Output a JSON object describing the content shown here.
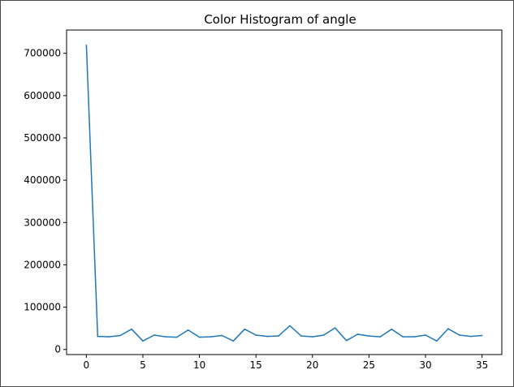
{
  "chart_data": {
    "type": "line",
    "title": "Color Histogram of angle",
    "xlabel": "",
    "ylabel": "",
    "xlim": [
      -1.75,
      36.75
    ],
    "ylim": [
      -12000,
      755000
    ],
    "xticks": [
      0,
      5,
      10,
      15,
      20,
      25,
      30,
      35
    ],
    "yticks": [
      0,
      100000,
      200000,
      300000,
      400000,
      500000,
      600000,
      700000
    ],
    "grid": false,
    "legend": "none",
    "series": [
      {
        "color": "#1f77b4",
        "x": [
          0,
          1,
          2,
          3,
          4,
          5,
          6,
          7,
          8,
          9,
          10,
          11,
          12,
          13,
          14,
          15,
          16,
          17,
          18,
          19,
          20,
          21,
          22,
          23,
          24,
          25,
          26,
          27,
          28,
          29,
          30,
          31,
          32,
          33,
          34,
          35
        ],
        "values": [
          719000,
          31000,
          30000,
          33000,
          48000,
          20000,
          34000,
          30000,
          29000,
          46000,
          29000,
          30000,
          33000,
          20000,
          48000,
          34000,
          31000,
          32000,
          56000,
          32000,
          30000,
          34000,
          51000,
          21000,
          36000,
          32000,
          30000,
          48000,
          30000,
          30000,
          34000,
          20000,
          49000,
          34000,
          31000,
          33000
        ]
      }
    ]
  }
}
